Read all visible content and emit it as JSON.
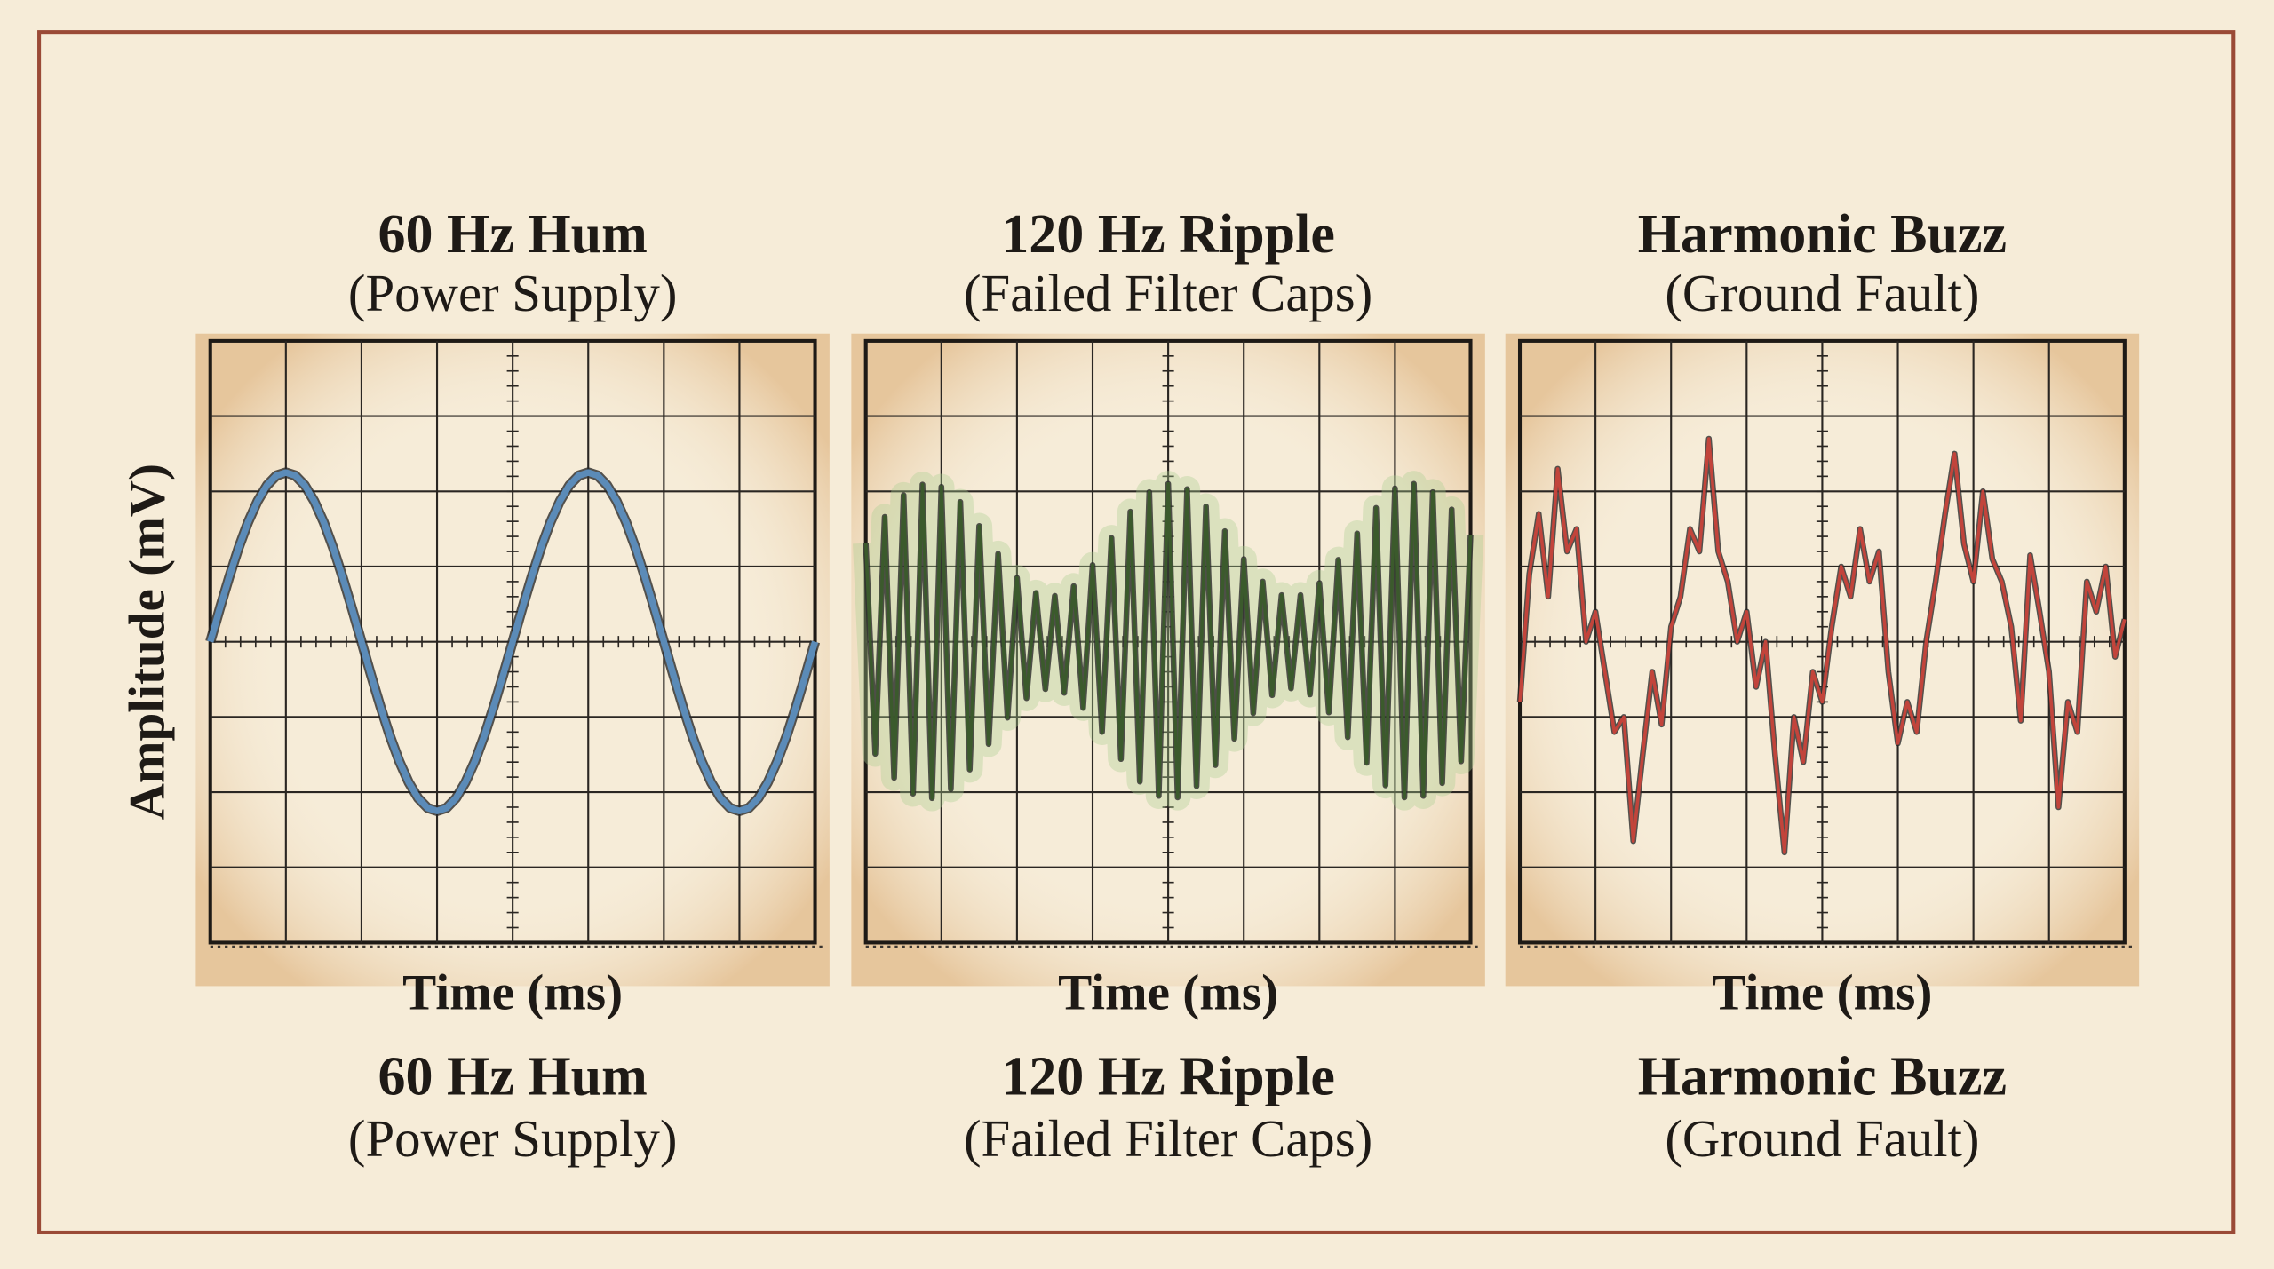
{
  "chart_data": [
    {
      "type": "line",
      "title": "60 Hz Hum",
      "subtitle": "(Power Supply)",
      "x_label": "Time (ms)",
      "y_label": "Amplitude (mV)",
      "xlim": [
        0,
        8
      ],
      "ylim": [
        -4,
        4
      ],
      "grid": true,
      "x": [
        0,
        0.125,
        0.25,
        0.375,
        0.5,
        0.625,
        0.75,
        0.875,
        1,
        1.125,
        1.25,
        1.375,
        1.5,
        1.625,
        1.75,
        1.875,
        2,
        2.125,
        2.25,
        2.375,
        2.5,
        2.625,
        2.75,
        2.875,
        3,
        3.125,
        3.25,
        3.375,
        3.5,
        3.625,
        3.75,
        3.875,
        4,
        4.125,
        4.25,
        4.375,
        4.5,
        4.625,
        4.75,
        4.875,
        5,
        5.125,
        5.25,
        5.375,
        5.5,
        5.625,
        5.75,
        5.875,
        6,
        6.125,
        6.25,
        6.375,
        6.5,
        6.625,
        6.75,
        6.875,
        7,
        7.125,
        7.25,
        7.375,
        7.5,
        7.625,
        7.75,
        7.875,
        8
      ],
      "series": [
        {
          "color": "#5b8bb8",
          "values": [
            0,
            0.44,
            0.86,
            1.25,
            1.59,
            1.87,
            2.08,
            2.21,
            2.25,
            2.21,
            2.08,
            1.87,
            1.59,
            1.25,
            0.86,
            0.44,
            0,
            -0.44,
            -0.86,
            -1.25,
            -1.59,
            -1.87,
            -2.08,
            -2.21,
            -2.25,
            -2.21,
            -2.08,
            -1.87,
            -1.59,
            -1.25,
            -0.86,
            -0.44,
            0,
            0.44,
            0.86,
            1.25,
            1.59,
            1.87,
            2.08,
            2.21,
            2.25,
            2.21,
            2.08,
            1.87,
            1.59,
            1.25,
            0.86,
            0.44,
            0,
            -0.44,
            -0.86,
            -1.25,
            -1.59,
            -1.87,
            -2.08,
            -2.21,
            -2.25,
            -2.21,
            -2.08,
            -1.87,
            -1.59,
            -1.25,
            -0.86,
            -0.44,
            0
          ]
        }
      ]
    },
    {
      "type": "line",
      "title": "120 Hz Ripple",
      "subtitle": "(Failed Filter Caps)",
      "x_label": "Time (ms)",
      "xlim": [
        0,
        8
      ],
      "ylim": [
        -4,
        4
      ],
      "grid": true,
      "x": [
        0,
        0.125,
        0.25,
        0.375,
        0.5,
        0.625,
        0.75,
        0.875,
        1,
        1.125,
        1.25,
        1.375,
        1.5,
        1.625,
        1.75,
        1.875,
        2,
        2.125,
        2.25,
        2.375,
        2.5,
        2.625,
        2.75,
        2.875,
        3,
        3.125,
        3.25,
        3.375,
        3.5,
        3.625,
        3.75,
        3.875,
        4,
        4.125,
        4.25,
        4.375,
        4.5,
        4.625,
        4.75,
        4.875,
        5,
        5.125,
        5.25,
        5.375,
        5.5,
        5.625,
        5.75,
        5.875,
        6,
        6.125,
        6.25,
        6.375,
        6.5,
        6.625,
        6.75,
        6.875,
        7,
        7.125,
        7.25,
        7.375,
        7.5,
        7.625,
        7.75,
        7.875,
        8
      ],
      "series": [
        {
          "color": "#3b5a2c",
          "values": [
            1.31,
            -1.49,
            1.66,
            -1.81,
            1.95,
            -2.02,
            2.09,
            -2.08,
            2.06,
            -1.96,
            1.86,
            -1.7,
            1.54,
            -1.36,
            1.17,
            -1.01,
            0.85,
            -0.75,
            0.65,
            -0.63,
            0.61,
            -0.68,
            0.74,
            -0.88,
            1.02,
            -1.2,
            1.38,
            -1.56,
            1.73,
            -1.86,
            1.99,
            -2.05,
            2.1,
            -2.07,
            2.03,
            -1.92,
            1.8,
            -1.64,
            1.47,
            -1.29,
            1.1,
            -0.95,
            0.8,
            -0.71,
            0.62,
            -0.62,
            0.62,
            -0.7,
            0.78,
            -0.94,
            1.09,
            -1.27,
            1.44,
            -1.61,
            1.78,
            -1.91,
            2.04,
            -2.07,
            2.1,
            -2.05,
            1.99,
            -1.88,
            1.76,
            -1.59,
            1.42
          ]
        }
      ]
    },
    {
      "type": "line",
      "title": "Harmonic Buzz",
      "subtitle": "(Ground Fault)",
      "x_label": "Time (ms)",
      "xlim": [
        0,
        8
      ],
      "ylim": [
        -4,
        4
      ],
      "grid": true,
      "x": [
        0,
        0.125,
        0.25,
        0.375,
        0.5,
        0.625,
        0.75,
        0.875,
        1,
        1.125,
        1.25,
        1.375,
        1.5,
        1.625,
        1.75,
        1.875,
        2,
        2.125,
        2.25,
        2.375,
        2.5,
        2.625,
        2.75,
        2.875,
        3,
        3.125,
        3.25,
        3.375,
        3.5,
        3.625,
        3.75,
        3.875,
        4,
        4.125,
        4.25,
        4.375,
        4.5,
        4.625,
        4.75,
        4.875,
        5,
        5.125,
        5.25,
        5.375,
        5.5,
        5.625,
        5.75,
        5.875,
        6,
        6.125,
        6.25,
        6.375,
        6.5,
        6.625,
        6.75,
        6.875,
        7,
        7.125,
        7.25,
        7.375,
        7.5,
        7.625,
        7.75,
        7.875,
        8
      ],
      "series": [
        {
          "color": "#c2443b",
          "values": [
            -0.8,
            0.9,
            1.7,
            0.6,
            2.3,
            1.2,
            1.5,
            0,
            0.4,
            -0.4,
            -1.2,
            -1,
            -2.65,
            -1.5,
            -0.4,
            -1.1,
            0.2,
            0.6,
            1.5,
            1.2,
            2.7,
            1.2,
            0.8,
            0,
            0.4,
            -0.6,
            0,
            -1.5,
            -2.8,
            -1,
            -1.6,
            -0.4,
            -0.8,
            0.2,
            1,
            0.6,
            1.5,
            0.8,
            1.2,
            -0.4,
            -1.35,
            -0.8,
            -1.2,
            0,
            0.8,
            1.7,
            2.5,
            1.3,
            0.8,
            2,
            1.1,
            0.8,
            0.2,
            -1.05,
            1.15,
            0.4,
            -0.4,
            -2.2,
            -0.8,
            -1.2,
            0.8,
            0.4,
            1,
            -0.2,
            0.3
          ]
        }
      ]
    }
  ]
}
